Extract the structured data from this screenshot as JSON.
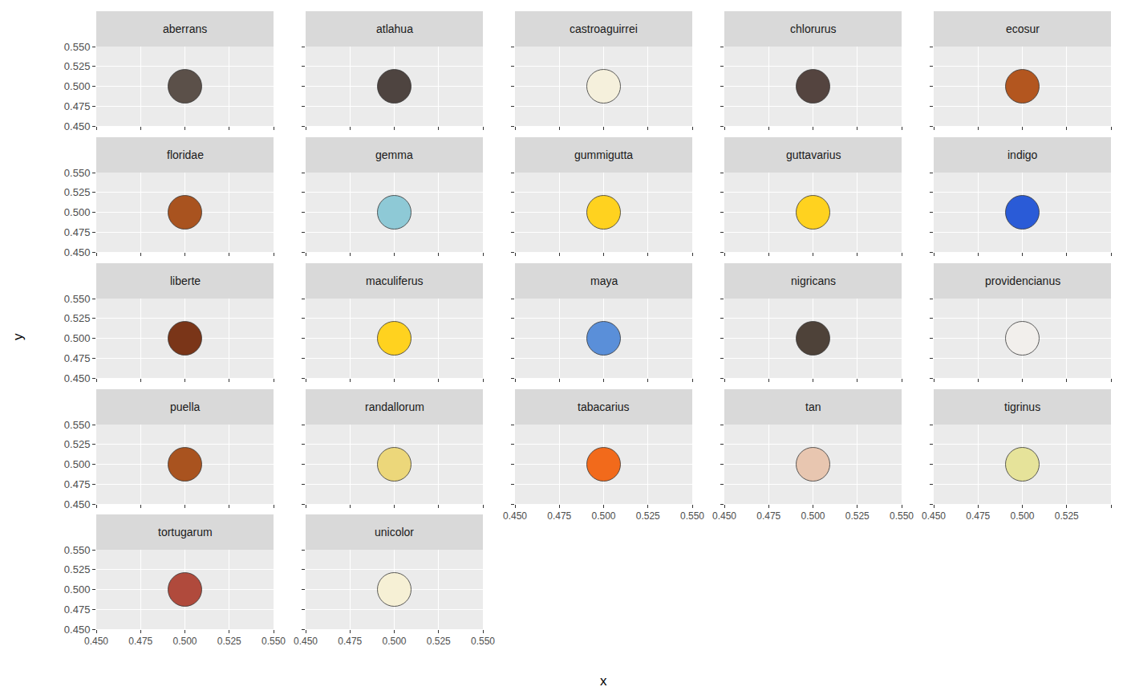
{
  "chart_data": {
    "type": "scatter",
    "xlabel": "x",
    "ylabel": "y",
    "xlim": [
      0.45,
      0.55
    ],
    "ylim": [
      0.45,
      0.55
    ],
    "xticks": [
      {
        "value": 0.45,
        "label": "0.450"
      },
      {
        "value": 0.475,
        "label": "0.475"
      },
      {
        "value": 0.5,
        "label": "0.500"
      },
      {
        "value": 0.525,
        "label": "0.525"
      },
      {
        "value": 0.55,
        "label": "0.550"
      }
    ],
    "yticks": [
      {
        "value": 0.45,
        "label": "0.450"
      },
      {
        "value": 0.475,
        "label": "0.475"
      },
      {
        "value": 0.5,
        "label": "0.500"
      },
      {
        "value": 0.525,
        "label": "0.525"
      },
      {
        "value": 0.55,
        "label": "0.550"
      }
    ],
    "grid": true,
    "marker": "circle",
    "series": [
      {
        "name": "aberrans",
        "color": "#5b5049",
        "x": [
          0.5
        ],
        "values": [
          0.5
        ]
      },
      {
        "name": "atlahua",
        "color": "#4e4440",
        "x": [
          0.5
        ],
        "values": [
          0.5
        ]
      },
      {
        "name": "castroaguirrei",
        "color": "#f5f0dc",
        "x": [
          0.5
        ],
        "values": [
          0.5
        ]
      },
      {
        "name": "chlorurus",
        "color": "#54443f",
        "x": [
          0.5
        ],
        "values": [
          0.5
        ]
      },
      {
        "name": "ecosur",
        "color": "#b3561f",
        "x": [
          0.5
        ],
        "values": [
          0.5
        ]
      },
      {
        "name": "floridae",
        "color": "#a9531f",
        "x": [
          0.5
        ],
        "values": [
          0.5
        ]
      },
      {
        "name": "gemma",
        "color": "#8ec9d6",
        "x": [
          0.5
        ],
        "values": [
          0.5
        ]
      },
      {
        "name": "gummigutta",
        "color": "#ffd21f",
        "x": [
          0.5
        ],
        "values": [
          0.5
        ]
      },
      {
        "name": "guttavarius",
        "color": "#ffd21f",
        "x": [
          0.5
        ],
        "values": [
          0.5
        ]
      },
      {
        "name": "indigo",
        "color": "#2a5bd7",
        "x": [
          0.5
        ],
        "values": [
          0.5
        ]
      },
      {
        "name": "liberte",
        "color": "#7a3518",
        "x": [
          0.5
        ],
        "values": [
          0.5
        ]
      },
      {
        "name": "maculiferus",
        "color": "#ffd21f",
        "x": [
          0.5
        ],
        "values": [
          0.5
        ]
      },
      {
        "name": "maya",
        "color": "#5a8fd9",
        "x": [
          0.5
        ],
        "values": [
          0.5
        ]
      },
      {
        "name": "nigricans",
        "color": "#4e4239",
        "x": [
          0.5
        ],
        "values": [
          0.5
        ]
      },
      {
        "name": "providencianus",
        "color": "#f2efec",
        "x": [
          0.5
        ],
        "values": [
          0.5
        ]
      },
      {
        "name": "puella",
        "color": "#a9531f",
        "x": [
          0.5
        ],
        "values": [
          0.5
        ]
      },
      {
        "name": "randallorum",
        "color": "#ecd77a",
        "x": [
          0.5
        ],
        "values": [
          0.5
        ]
      },
      {
        "name": "tabacarius",
        "color": "#f26a1b",
        "x": [
          0.5
        ],
        "values": [
          0.5
        ]
      },
      {
        "name": "tan",
        "color": "#e8c6b0",
        "x": [
          0.5
        ],
        "values": [
          0.5
        ]
      },
      {
        "name": "tigrinus",
        "color": "#e6e39a",
        "x": [
          0.5
        ],
        "values": [
          0.5
        ]
      },
      {
        "name": "tortugarum",
        "color": "#b04a3c",
        "x": [
          0.5
        ],
        "values": [
          0.5
        ]
      },
      {
        "name": "unicolor",
        "color": "#f6f0d5",
        "x": [
          0.5
        ],
        "values": [
          0.5
        ]
      }
    ]
  }
}
